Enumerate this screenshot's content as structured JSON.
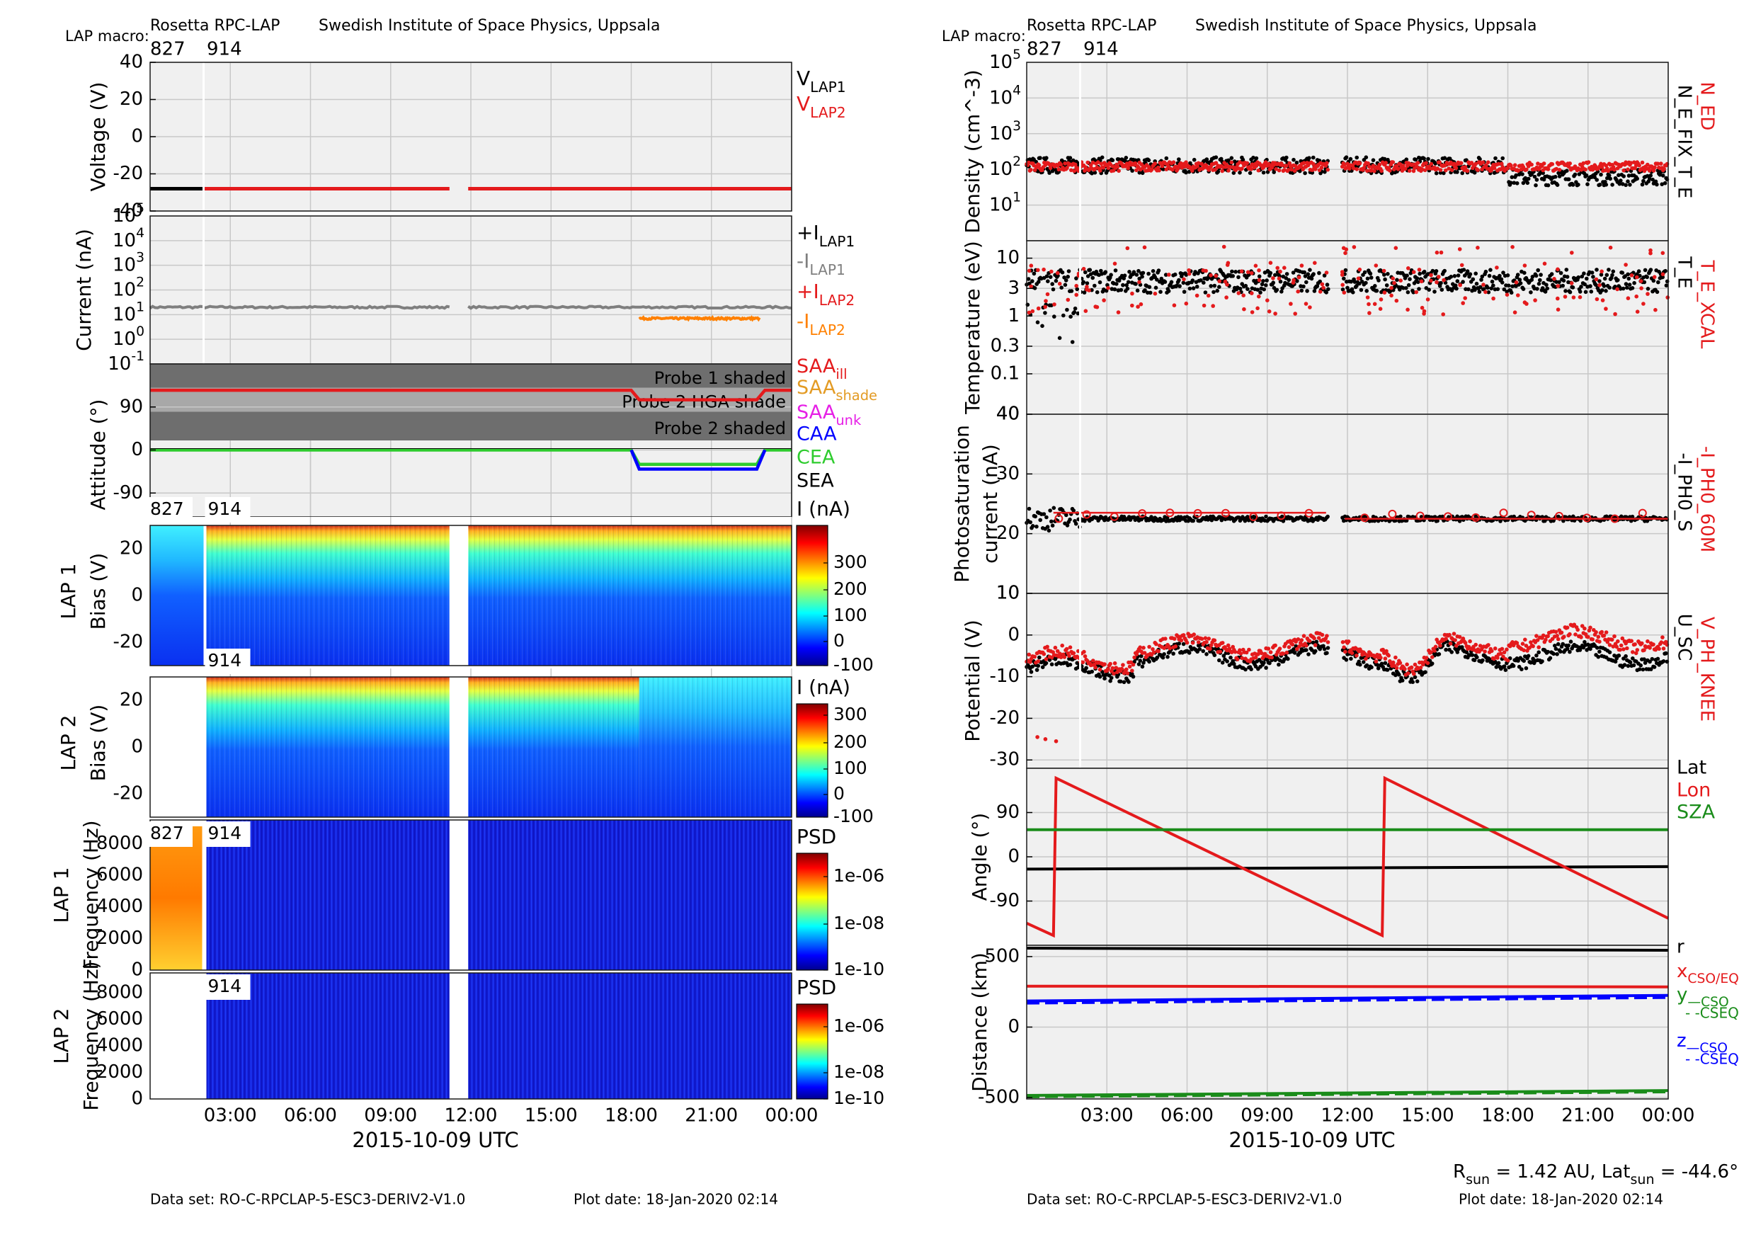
{
  "header": {
    "left_title": "Rosetta RPC-LAP",
    "left_org": "Swedish Institute of Space Physics, Uppsala",
    "right_title": "Rosetta RPC-LAP",
    "right_org": "Swedish Institute of Space Physics, Uppsala",
    "macro_label": "LAP macro:",
    "macro_a": "827",
    "macro_b": "914"
  },
  "footer": {
    "left_dataset": "Data set: RO-C-RPCLAP-5-ESC3-DERIV2-V1.0",
    "left_plotdate": "Plot date: 18-Jan-2020 02:14",
    "right_dataset": "Data set: RO-C-RPCLAP-5-ESC3-DERIV2-V1.0",
    "right_plotdate": "Plot date: 18-Jan-2020 02:14",
    "rsun_text": "R_sun = 1.42 AU, Lat_sun = -44.6°"
  },
  "time_axis": {
    "xlabel": "2015-10-09 UTC",
    "ticks": [
      "03:00",
      "06:00",
      "09:00",
      "12:00",
      "15:00",
      "18:00",
      "21:00",
      "00:00"
    ],
    "tick_hours": [
      3,
      6,
      9,
      12,
      15,
      18,
      21,
      24
    ],
    "range_hours": [
      0,
      24
    ]
  },
  "chart_data": [
    {
      "id": "voltage",
      "type": "line",
      "ylabel": "Voltage (V)",
      "ylim": [
        -40,
        40
      ],
      "yticks": [
        "40",
        "20",
        "0",
        "-20",
        "-40"
      ],
      "ytick_values": [
        40,
        20,
        0,
        -20,
        -40
      ],
      "legend": [
        "V_LAP1",
        "V_LAP2"
      ],
      "series": [
        {
          "name": "V_LAP1",
          "color": "#000000",
          "segments": [
            [
              0,
              2.0,
              -28
            ]
          ]
        },
        {
          "name": "V_LAP2",
          "color": "#e41a1c",
          "segments": [
            [
              2.0,
              11.2,
              -28
            ],
            [
              11.9,
              24,
              -28
            ]
          ]
        }
      ]
    },
    {
      "id": "current",
      "type": "line",
      "yscale": "log",
      "ylabel": "Current (nA)",
      "ylim_exp": [
        -1,
        5
      ],
      "yticks": [
        "10^-1",
        "10^0",
        "10^1",
        "10^2",
        "10^3",
        "10^4",
        "10^5"
      ],
      "legend": [
        "+I_LAP1",
        "-I_LAP1",
        "+I_LAP2",
        "-I_LAP2"
      ],
      "series": [
        {
          "name": "-I_LAP1",
          "color": "#7f7f7f",
          "segments": [
            [
              0,
              11.2,
              20
            ],
            [
              11.9,
              24,
              20
            ]
          ]
        },
        {
          "name": "-I_LAP2",
          "color": "#ff8000",
          "segments": [
            [
              18.3,
              22.8,
              7
            ]
          ]
        }
      ]
    },
    {
      "id": "attitude",
      "type": "line",
      "ylabel": "Attitude (°)",
      "ylim": [
        -140,
        180
      ],
      "yticks": [
        "90",
        "0",
        "-90"
      ],
      "ytick_values": [
        90,
        0,
        -90
      ],
      "bands": [
        {
          "label": "Probe 1 shaded",
          "from": 130,
          "to": 180,
          "color": "#6e6e6e"
        },
        {
          "label": "Probe 2 HGA shade",
          "from": 80,
          "to": 130,
          "color": "#a8a8a8"
        },
        {
          "label": "Probe 2 shaded",
          "from": 20,
          "to": 80,
          "color": "#6e6e6e"
        }
      ],
      "legend": [
        "SAA_ill",
        "SAA_shade",
        "SAA_unk",
        "CAA",
        "CEA",
        "SEA"
      ],
      "series": [
        {
          "name": "SAA",
          "color": "#e41a1c",
          "points": [
            [
              0,
              125
            ],
            [
              18.0,
              125
            ],
            [
              18.3,
              105
            ],
            [
              22.7,
              105
            ],
            [
              23.0,
              125
            ],
            [
              24,
              125
            ]
          ]
        },
        {
          "name": "CEA",
          "color": "#2ecc2e",
          "points": [
            [
              0,
              0
            ],
            [
              18.0,
              0
            ],
            [
              18.3,
              -30
            ],
            [
              22.7,
              -30
            ],
            [
              23.0,
              0
            ],
            [
              24,
              0
            ]
          ]
        },
        {
          "name": "CAA",
          "color": "#0000ff",
          "points": [
            [
              18.0,
              0
            ],
            [
              18.3,
              -40
            ],
            [
              22.7,
              -40
            ],
            [
              23.0,
              0
            ]
          ]
        }
      ]
    },
    {
      "id": "lap1_sweep",
      "type": "heatmap",
      "ylabel": "LAP 1",
      "ylabel2": "Bias (V)",
      "ylim": [
        -30,
        30
      ],
      "yticks": [
        "20",
        "0",
        "-20"
      ],
      "ytick_values": [
        20,
        0,
        -20
      ],
      "colorbar_title": "I (nA)",
      "colorbar_ticks": [
        "300",
        "200",
        "100",
        "0",
        "-100"
      ],
      "macro_tags": [
        "827",
        "914"
      ],
      "gap_hours": [
        11.2,
        11.9
      ]
    },
    {
      "id": "lap2_sweep",
      "type": "heatmap",
      "ylabel": "LAP 2",
      "ylabel2": "Bias (V)",
      "ylim": [
        -30,
        30
      ],
      "yticks": [
        "20",
        "0",
        "-20"
      ],
      "ytick_values": [
        20,
        0,
        -20
      ],
      "colorbar_title": "I (nA)",
      "colorbar_ticks": [
        "300",
        "200",
        "100",
        "0",
        "-100"
      ],
      "macro_tags": [
        "914"
      ],
      "gap_hours": [
        11.2,
        11.9
      ]
    },
    {
      "id": "lap1_psd",
      "type": "heatmap",
      "ylabel": "LAP 1",
      "ylabel2": "Frequency (Hz)",
      "ylim": [
        0,
        9500
      ],
      "yticks": [
        "8000",
        "6000",
        "4000",
        "2000",
        "0"
      ],
      "ytick_values": [
        8000,
        6000,
        4000,
        2000,
        0
      ],
      "colorbar_title": "PSD",
      "colorbar_ticks": [
        "1e-06",
        "1e-08",
        "1e-10"
      ],
      "macro_tags": [
        "827",
        "914"
      ],
      "gap_hours": [
        11.2,
        11.9
      ]
    },
    {
      "id": "lap2_psd",
      "type": "heatmap",
      "ylabel": "LAP 2",
      "ylabel2": "Frequency (Hz)",
      "ylim": [
        0,
        9500
      ],
      "yticks": [
        "8000",
        "6000",
        "4000",
        "2000",
        "0"
      ],
      "ytick_values": [
        8000,
        6000,
        4000,
        2000,
        0
      ],
      "colorbar_title": "PSD",
      "colorbar_ticks": [
        "1e-06",
        "1e-08",
        "1e-10"
      ],
      "macro_tags": [
        "914"
      ],
      "gap_hours": [
        11.2,
        11.9
      ]
    },
    {
      "id": "density",
      "type": "scatter",
      "yscale": "log",
      "ylabel": "Density (cm^-3)",
      "ylim_exp": [
        0,
        5
      ],
      "yticks": [
        "10^1",
        "10^2",
        "10^3",
        "10^4",
        "10^5"
      ],
      "right_labels": [
        "N_ED",
        "N_E_FIX_T_E"
      ],
      "series": [
        {
          "name": "N_E_FIX_T_E",
          "color": "#000000",
          "typical": 120
        },
        {
          "name": "N_ED",
          "color": "#e41a1c",
          "typical": 130
        }
      ]
    },
    {
      "id": "temperature",
      "type": "scatter",
      "yscale": "log",
      "ylabel": "Temperature (eV)",
      "ylim": [
        0.02,
        20
      ],
      "yticks": [
        "10",
        "3",
        "1",
        "0.3",
        "0.1"
      ],
      "ytick_values": [
        10,
        3,
        1,
        0.3,
        0.1
      ],
      "right_labels": [
        "T_E_XCAL",
        "T_E"
      ],
      "series": [
        {
          "name": "T_E",
          "color": "#000000",
          "typical": 4
        },
        {
          "name": "T_E_XCAL",
          "color": "#e41a1c",
          "typical": 3
        }
      ]
    },
    {
      "id": "photosat",
      "type": "scatter",
      "ylabel": "Photosaturation",
      "ylabel2": "current (nA)",
      "ylim": [
        10,
        40
      ],
      "yticks": [
        "40",
        "30",
        "20",
        "10"
      ],
      "ytick_values": [
        40,
        30,
        20,
        10
      ],
      "right_labels": [
        "-I_PH0_60M",
        "-I_PH0_S"
      ],
      "series": [
        {
          "name": "-I_PH0_S",
          "color": "#000000",
          "typical": 22.5
        },
        {
          "name": "-I_PH0_60M",
          "color": "#e41a1c",
          "typical": 23
        }
      ]
    },
    {
      "id": "potential",
      "type": "scatter",
      "ylabel": "Potential (V)",
      "ylim": [
        -32,
        10
      ],
      "yticks": [
        "10",
        "0",
        "-10",
        "-20",
        "-30"
      ],
      "ytick_values": [
        10,
        0,
        -10,
        -20,
        -30
      ],
      "right_labels": [
        "V_PH_KNEE",
        "U_SC"
      ],
      "series": [
        {
          "name": "U_SC",
          "color": "#000000",
          "typical": -5
        },
        {
          "name": "V_PH_KNEE",
          "color": "#e41a1c",
          "typical": -3
        }
      ]
    },
    {
      "id": "angle",
      "type": "line",
      "ylabel": "Angle (°)",
      "ylim": [
        -180,
        180
      ],
      "yticks": [
        "90",
        "0",
        "-90"
      ],
      "ytick_values": [
        90,
        0,
        -90
      ],
      "legend": [
        "Lat",
        "Lon",
        "SZA"
      ],
      "series": [
        {
          "name": "Lat",
          "color": "#000000",
          "points": [
            [
              0,
              -25
            ],
            [
              24,
              -20
            ]
          ]
        },
        {
          "name": "Lon",
          "color": "#e41a1c",
          "points": [
            [
              0,
              -135
            ],
            [
              1.0,
              -160
            ],
            [
              1.1,
              160
            ],
            [
              13.3,
              -160
            ],
            [
              13.4,
              160
            ],
            [
              24,
              -125
            ]
          ]
        },
        {
          "name": "SZA",
          "color": "#1a8c1a",
          "points": [
            [
              0,
              55
            ],
            [
              24,
              55
            ]
          ]
        }
      ]
    },
    {
      "id": "distance",
      "type": "line",
      "ylabel": "Distance (km)",
      "ylim": [
        -510,
        580
      ],
      "yticks": [
        "500",
        "0",
        "-500"
      ],
      "ytick_values": [
        500,
        0,
        -500
      ],
      "legend": [
        "r",
        "x_CSO/EQ",
        "y_—CSO",
        "- -CSEQ",
        "z_—CSO",
        "- -CSEQ"
      ],
      "series": [
        {
          "name": "r",
          "color": "#000000",
          "points": [
            [
              0,
              560
            ],
            [
              24,
              545
            ]
          ]
        },
        {
          "name": "x",
          "color": "#e41a1c",
          "points": [
            [
              0,
              290
            ],
            [
              24,
              285
            ]
          ]
        },
        {
          "name": "z CSO",
          "color": "#0000ff",
          "points": [
            [
              0,
              185
            ],
            [
              24,
              225
            ]
          ]
        },
        {
          "name": "z CSEQ",
          "color": "#0000ff",
          "dash": true,
          "points": [
            [
              0,
              170
            ],
            [
              24,
              210
            ]
          ]
        },
        {
          "name": "y CSO",
          "color": "#1a8c1a",
          "points": [
            [
              0,
              -485
            ],
            [
              24,
              -450
            ]
          ]
        },
        {
          "name": "y CSEQ",
          "color": "#1a8c1a",
          "dash": true,
          "points": [
            [
              0,
              -495
            ],
            [
              24,
              -460
            ]
          ]
        }
      ]
    }
  ]
}
